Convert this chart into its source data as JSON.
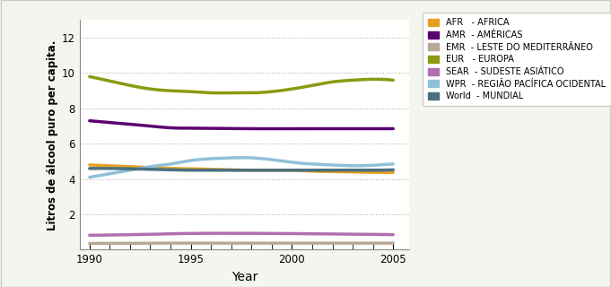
{
  "years": [
    1990,
    1991,
    1992,
    1993,
    1994,
    1995,
    1996,
    1997,
    1998,
    1999,
    2000,
    2001,
    2002,
    2003,
    2004,
    2005
  ],
  "series": {
    "AFR": {
      "color": "#E8A020",
      "linewidth": 2.5,
      "values": [
        4.8,
        4.75,
        4.7,
        4.65,
        4.6,
        4.58,
        4.55,
        4.52,
        4.5,
        4.5,
        4.5,
        4.45,
        4.42,
        4.4,
        4.38,
        4.38
      ]
    },
    "AMR": {
      "color": "#5C0070",
      "linewidth": 2.5,
      "values": [
        7.3,
        7.2,
        7.1,
        7.0,
        6.9,
        6.88,
        6.87,
        6.86,
        6.85,
        6.85,
        6.85,
        6.85,
        6.85,
        6.85,
        6.85,
        6.85
      ]
    },
    "EMR": {
      "color": "#B8A898",
      "linewidth": 2.5,
      "values": [
        0.35,
        0.36,
        0.36,
        0.37,
        0.37,
        0.37,
        0.37,
        0.37,
        0.37,
        0.37,
        0.37,
        0.37,
        0.37,
        0.37,
        0.37,
        0.37
      ]
    },
    "EUR": {
      "color": "#8B9A10",
      "linewidth": 2.5,
      "values": [
        9.8,
        9.55,
        9.3,
        9.1,
        9.0,
        8.95,
        8.88,
        8.88,
        8.88,
        8.95,
        9.1,
        9.3,
        9.5,
        9.6,
        9.65,
        9.6
      ]
    },
    "SEAR": {
      "color": "#B070B0",
      "linewidth": 2.5,
      "values": [
        0.82,
        0.83,
        0.85,
        0.87,
        0.9,
        0.92,
        0.93,
        0.93,
        0.93,
        0.92,
        0.91,
        0.9,
        0.89,
        0.88,
        0.87,
        0.85
      ]
    },
    "WPR": {
      "color": "#90C0D8",
      "linewidth": 2.5,
      "values": [
        4.1,
        4.3,
        4.5,
        4.7,
        4.85,
        5.05,
        5.15,
        5.2,
        5.2,
        5.1,
        4.95,
        4.85,
        4.8,
        4.75,
        4.78,
        4.85
      ]
    },
    "World": {
      "color": "#4A7080",
      "linewidth": 2.5,
      "values": [
        4.6,
        4.6,
        4.58,
        4.55,
        4.52,
        4.5,
        4.5,
        4.5,
        4.5,
        4.5,
        4.5,
        4.5,
        4.5,
        4.5,
        4.5,
        4.52
      ]
    }
  },
  "legend_order": [
    "AFR",
    "AMR",
    "EMR",
    "EUR",
    "SEAR",
    "WPR",
    "World"
  ],
  "legend_labels": {
    "AFR": "AFR   - AFRICA",
    "AMR": "AMR  - AMÉRICAS",
    "EMR": "EMR  - LESTE DO MEDITERRÂNEO",
    "EUR": "EUR   - EUROPA",
    "SEAR": "SEAR  - SUDESTE ASIÁTICO",
    "WPR": "WPR  - REGIÃO PACÍFICA OCIDENTAL",
    "World": "World  - MUNDIAL"
  },
  "xlabel": "Year",
  "ylabel": "Litros de álcool puro per capita.",
  "ylim": [
    0,
    13
  ],
  "yticks": [
    0,
    2,
    4,
    6,
    8,
    10,
    12
  ],
  "xticks": [
    1990,
    1995,
    2000,
    2005
  ],
  "xlim": [
    1989.5,
    2005.8
  ],
  "background_color": "#FFFFFF",
  "figure_bg": "#F5F5F0",
  "grid_color": "#AAAAAA",
  "grid_style": ":"
}
